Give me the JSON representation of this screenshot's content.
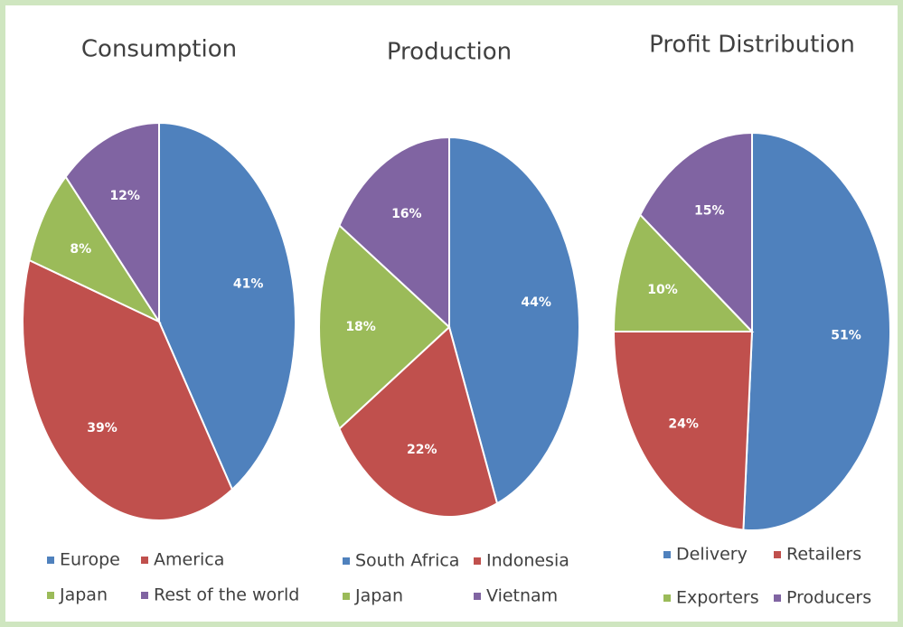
{
  "chart_data": [
    {
      "type": "pie",
      "title": "Consumption",
      "categories": [
        "Europe",
        "America",
        "Japan",
        "Rest of the world"
      ],
      "values": [
        41,
        39,
        8,
        12
      ],
      "value_labels": [
        "41%",
        "39%",
        "8%",
        "12%"
      ],
      "colors": [
        "#4f81bd",
        "#c0504d",
        "#9bbb59",
        "#8064a2"
      ]
    },
    {
      "type": "pie",
      "title": "Production",
      "categories": [
        "South Africa",
        "Indonesia",
        "Japan",
        "Vietnam"
      ],
      "values": [
        44,
        22,
        18,
        16
      ],
      "value_labels": [
        "44%",
        "22%",
        "18%",
        "16%"
      ],
      "colors": [
        "#4f81bd",
        "#c0504d",
        "#9bbb59",
        "#8064a2"
      ]
    },
    {
      "type": "pie",
      "title": "Profit Distribution",
      "categories": [
        "Delivery",
        "Retailers",
        "Exporters",
        "Producers"
      ],
      "values": [
        51,
        24,
        10,
        15
      ],
      "value_labels": [
        "51%",
        "24%",
        "10%",
        "15%"
      ],
      "colors": [
        "#4f81bd",
        "#c0504d",
        "#9bbb59",
        "#8064a2"
      ]
    }
  ]
}
